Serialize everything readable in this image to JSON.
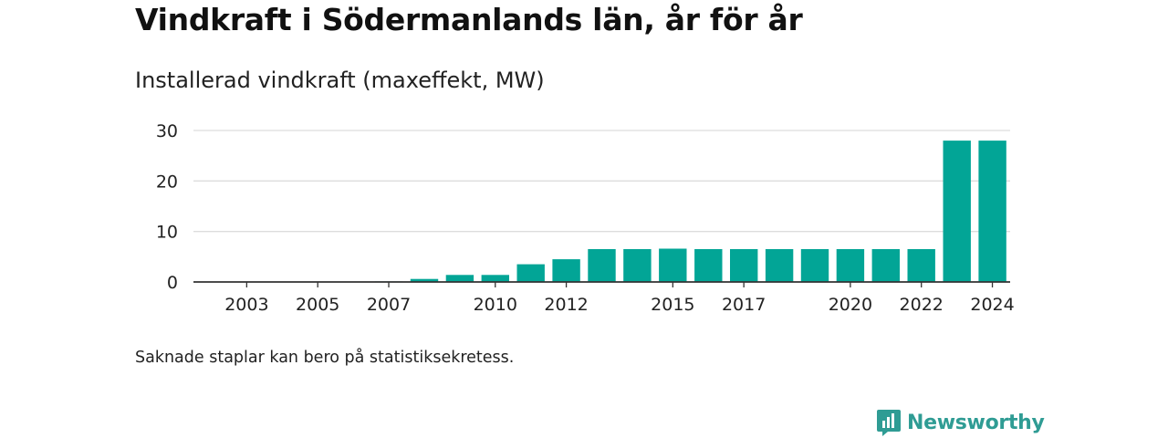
{
  "header": {
    "title": "Vindkraft i Södermanlands län, år för år",
    "subtitle": "Installerad vindkraft (maxeffekt, MW)"
  },
  "footer": {
    "note": "Saknade staplar kan bero på statistiksekretess.",
    "brand": "Newsworthy"
  },
  "colors": {
    "bar": "#02a596",
    "grid": "#dddddd",
    "axis": "#333333",
    "brand": "#2f9c94"
  },
  "chart_data": {
    "type": "bar",
    "title": "Vindkraft i Södermanlands län, år för år",
    "subtitle": "Installerad vindkraft (maxeffekt, MW)",
    "xlabel": "",
    "ylabel": "",
    "categories": [
      2002,
      2003,
      2004,
      2005,
      2006,
      2007,
      2008,
      2009,
      2010,
      2011,
      2012,
      2013,
      2014,
      2015,
      2016,
      2017,
      2018,
      2019,
      2020,
      2021,
      2022,
      2023,
      2024
    ],
    "values": [
      null,
      null,
      null,
      null,
      null,
      0.1,
      0.6,
      1.4,
      1.4,
      3.5,
      4.5,
      6.5,
      6.5,
      6.6,
      6.5,
      6.5,
      6.5,
      6.5,
      6.5,
      6.5,
      6.5,
      28.0,
      28.0
    ],
    "x_tick_labels": [
      "2003",
      "2005",
      "2007",
      "2010",
      "2012",
      "2015",
      "2017",
      "2020",
      "2022",
      "2024"
    ],
    "y_ticks": [
      0,
      10,
      20,
      30
    ],
    "ylim": [
      0,
      30
    ],
    "grid": true,
    "legend": "none"
  }
}
